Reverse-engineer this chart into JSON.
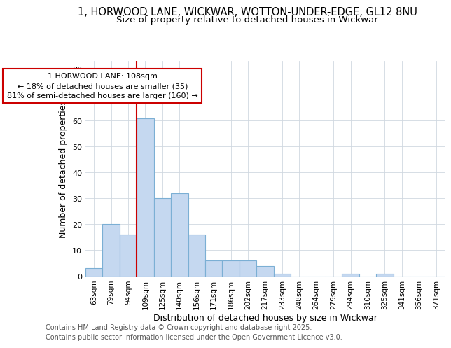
{
  "title_line1": "1, HORWOOD LANE, WICKWAR, WOTTON-UNDER-EDGE, GL12 8NU",
  "title_line2": "Size of property relative to detached houses in Wickwar",
  "xlabel": "Distribution of detached houses by size in Wickwar",
  "ylabel": "Number of detached properties",
  "categories": [
    "63sqm",
    "79sqm",
    "94sqm",
    "109sqm",
    "125sqm",
    "140sqm",
    "156sqm",
    "171sqm",
    "186sqm",
    "202sqm",
    "217sqm",
    "233sqm",
    "248sqm",
    "264sqm",
    "279sqm",
    "294sqm",
    "310sqm",
    "325sqm",
    "341sqm",
    "356sqm",
    "371sqm"
  ],
  "values": [
    3,
    20,
    16,
    61,
    30,
    32,
    16,
    6,
    6,
    6,
    4,
    1,
    0,
    0,
    0,
    1,
    0,
    1,
    0,
    0,
    0
  ],
  "bar_color": "#c5d8f0",
  "bar_edge_color": "#7bafd4",
  "bar_width": 1.0,
  "vline_x_idx": 3,
  "vline_color": "#cc0000",
  "annotation_text": "1 HORWOOD LANE: 108sqm\n← 18% of detached houses are smaller (35)\n81% of semi-detached houses are larger (160) →",
  "annotation_box_color": "#ffffff",
  "annotation_box_edge": "#cc0000",
  "ylim": [
    0,
    83
  ],
  "yticks": [
    0,
    10,
    20,
    30,
    40,
    50,
    60,
    70,
    80
  ],
  "grid_color": "#d0d8e0",
  "bg_color": "#ffffff",
  "plot_bg_color": "#ffffff",
  "footer_line1": "Contains HM Land Registry data © Crown copyright and database right 2025.",
  "footer_line2": "Contains public sector information licensed under the Open Government Licence v3.0.",
  "title_fontsize": 10.5,
  "subtitle_fontsize": 9.5,
  "tick_fontsize": 7.5,
  "label_fontsize": 9,
  "footer_fontsize": 7
}
